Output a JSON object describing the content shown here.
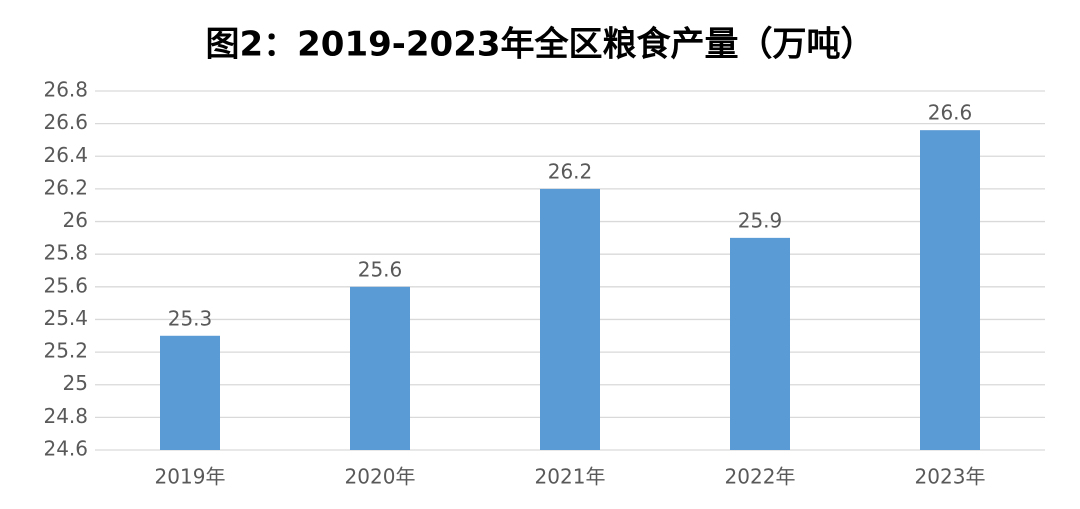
{
  "chart_data": {
    "type": "bar",
    "title": "图2：2019-2023年全区粮食产量（万吨）",
    "categories": [
      "2019年",
      "2020年",
      "2021年",
      "2022年",
      "2023年"
    ],
    "values": [
      25.3,
      25.6,
      26.2,
      25.9,
      26.56
    ],
    "value_labels": [
      "25.3",
      "25.6",
      "26.2",
      "25.9",
      "26.6"
    ],
    "color": "#5b9bd5",
    "ylim": [
      24.6,
      26.8
    ],
    "yticks": [
      24.6,
      24.8,
      25,
      25.2,
      25.4,
      25.6,
      25.8,
      26,
      26.2,
      26.4,
      26.6,
      26.8
    ],
    "grid": true
  }
}
